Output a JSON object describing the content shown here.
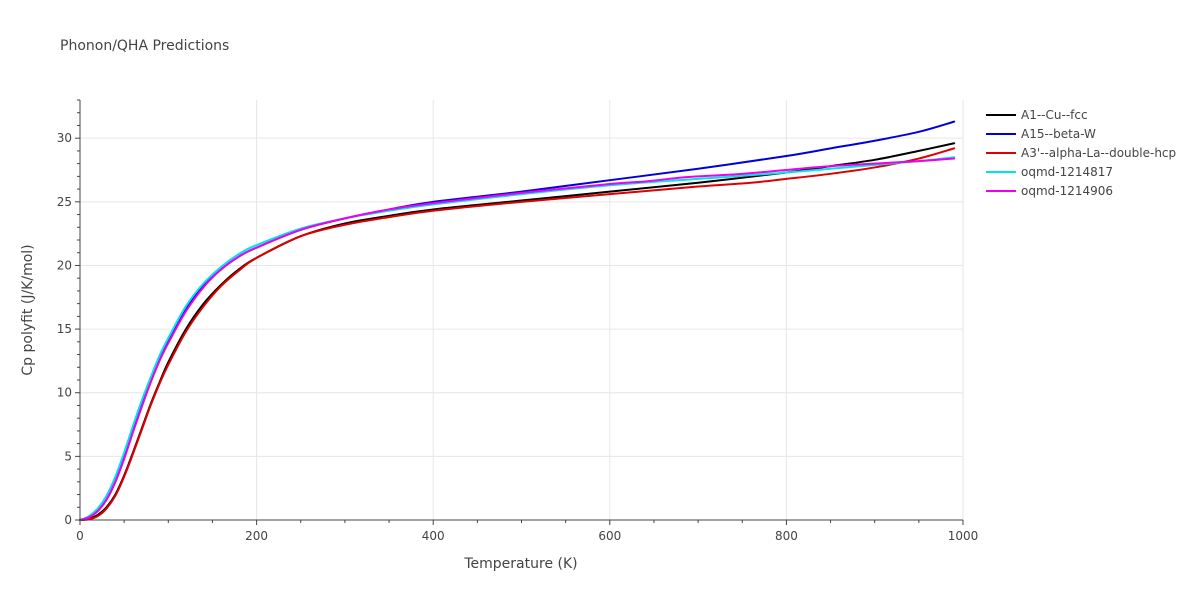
{
  "chart_data": {
    "type": "line",
    "title": "Phonon/QHA Predictions",
    "xlabel": "Temperature (K)",
    "ylabel": "Cp polyfit (J/K/mol)",
    "xlim": [
      0,
      1000
    ],
    "ylim": [
      0,
      33
    ],
    "xticks": [
      0,
      200,
      400,
      600,
      800,
      1000
    ],
    "yticks": [
      0,
      5,
      10,
      15,
      20,
      25,
      30
    ],
    "grid": true,
    "legend_position": "right",
    "series": [
      {
        "name": "A1--Cu--fcc",
        "color": "#000000",
        "x": [
          0,
          10,
          20,
          30,
          40,
          50,
          60,
          70,
          80,
          90,
          100,
          120,
          140,
          160,
          180,
          200,
          250,
          300,
          350,
          400,
          500,
          600,
          700,
          800,
          850,
          900,
          950,
          990
        ],
        "y": [
          0,
          0.1,
          0.4,
          1.0,
          2.0,
          3.5,
          5.3,
          7.2,
          9.1,
          10.8,
          12.4,
          15.0,
          17.0,
          18.5,
          19.7,
          20.6,
          22.3,
          23.3,
          23.9,
          24.4,
          25.1,
          25.8,
          26.5,
          27.3,
          27.8,
          28.3,
          29.0,
          29.6
        ]
      },
      {
        "name": "A15--beta-W",
        "color": "#0000dd",
        "x": [
          0,
          10,
          20,
          30,
          40,
          50,
          60,
          70,
          80,
          90,
          100,
          120,
          140,
          160,
          180,
          200,
          250,
          300,
          350,
          400,
          500,
          600,
          700,
          800,
          850,
          900,
          950,
          990
        ],
        "y": [
          0,
          0.2,
          0.7,
          1.6,
          3.0,
          4.9,
          7.0,
          9.1,
          11.0,
          12.7,
          14.1,
          16.6,
          18.4,
          19.7,
          20.7,
          21.4,
          22.8,
          23.7,
          24.4,
          25.0,
          25.8,
          26.7,
          27.6,
          28.6,
          29.2,
          29.8,
          30.5,
          31.3
        ]
      },
      {
        "name": "A3'--alpha-La--double-hcp",
        "color": "#dd0000",
        "x": [
          0,
          10,
          20,
          30,
          40,
          50,
          60,
          70,
          80,
          90,
          100,
          120,
          140,
          160,
          180,
          200,
          250,
          300,
          350,
          400,
          500,
          600,
          700,
          760,
          800,
          850,
          900,
          950,
          990
        ],
        "y": [
          0,
          0.05,
          0.3,
          0.9,
          1.9,
          3.4,
          5.2,
          7.1,
          9.0,
          10.7,
          12.2,
          14.8,
          16.8,
          18.4,
          19.6,
          20.6,
          22.3,
          23.2,
          23.8,
          24.3,
          25.0,
          25.6,
          26.2,
          26.5,
          26.8,
          27.2,
          27.7,
          28.4,
          29.2
        ]
      },
      {
        "name": "oqmd-1214817",
        "color": "#00e5e5",
        "x": [
          0,
          10,
          20,
          30,
          40,
          50,
          60,
          70,
          80,
          90,
          100,
          120,
          140,
          160,
          180,
          200,
          250,
          300,
          350,
          400,
          500,
          600,
          700,
          800,
          850,
          900,
          950,
          990
        ],
        "y": [
          0,
          0.3,
          0.9,
          1.9,
          3.4,
          5.3,
          7.4,
          9.4,
          11.2,
          12.9,
          14.3,
          16.8,
          18.6,
          19.9,
          20.9,
          21.6,
          22.9,
          23.7,
          24.3,
          24.8,
          25.6,
          26.3,
          26.8,
          27.3,
          27.6,
          27.9,
          28.2,
          28.5
        ]
      },
      {
        "name": "oqmd-1214906",
        "color": "#ee00ee",
        "x": [
          0,
          10,
          20,
          30,
          40,
          50,
          60,
          70,
          80,
          90,
          100,
          120,
          140,
          160,
          180,
          200,
          250,
          300,
          350,
          400,
          500,
          600,
          640,
          680,
          700,
          750,
          800,
          850,
          900,
          950,
          990
        ],
        "y": [
          0,
          0.2,
          0.7,
          1.6,
          3.0,
          4.8,
          6.9,
          8.9,
          10.8,
          12.5,
          13.9,
          16.4,
          18.3,
          19.7,
          20.7,
          21.4,
          22.8,
          23.7,
          24.4,
          24.9,
          25.7,
          26.4,
          26.6,
          26.9,
          27.0,
          27.2,
          27.5,
          27.8,
          28.0,
          28.2,
          28.4
        ]
      }
    ]
  }
}
